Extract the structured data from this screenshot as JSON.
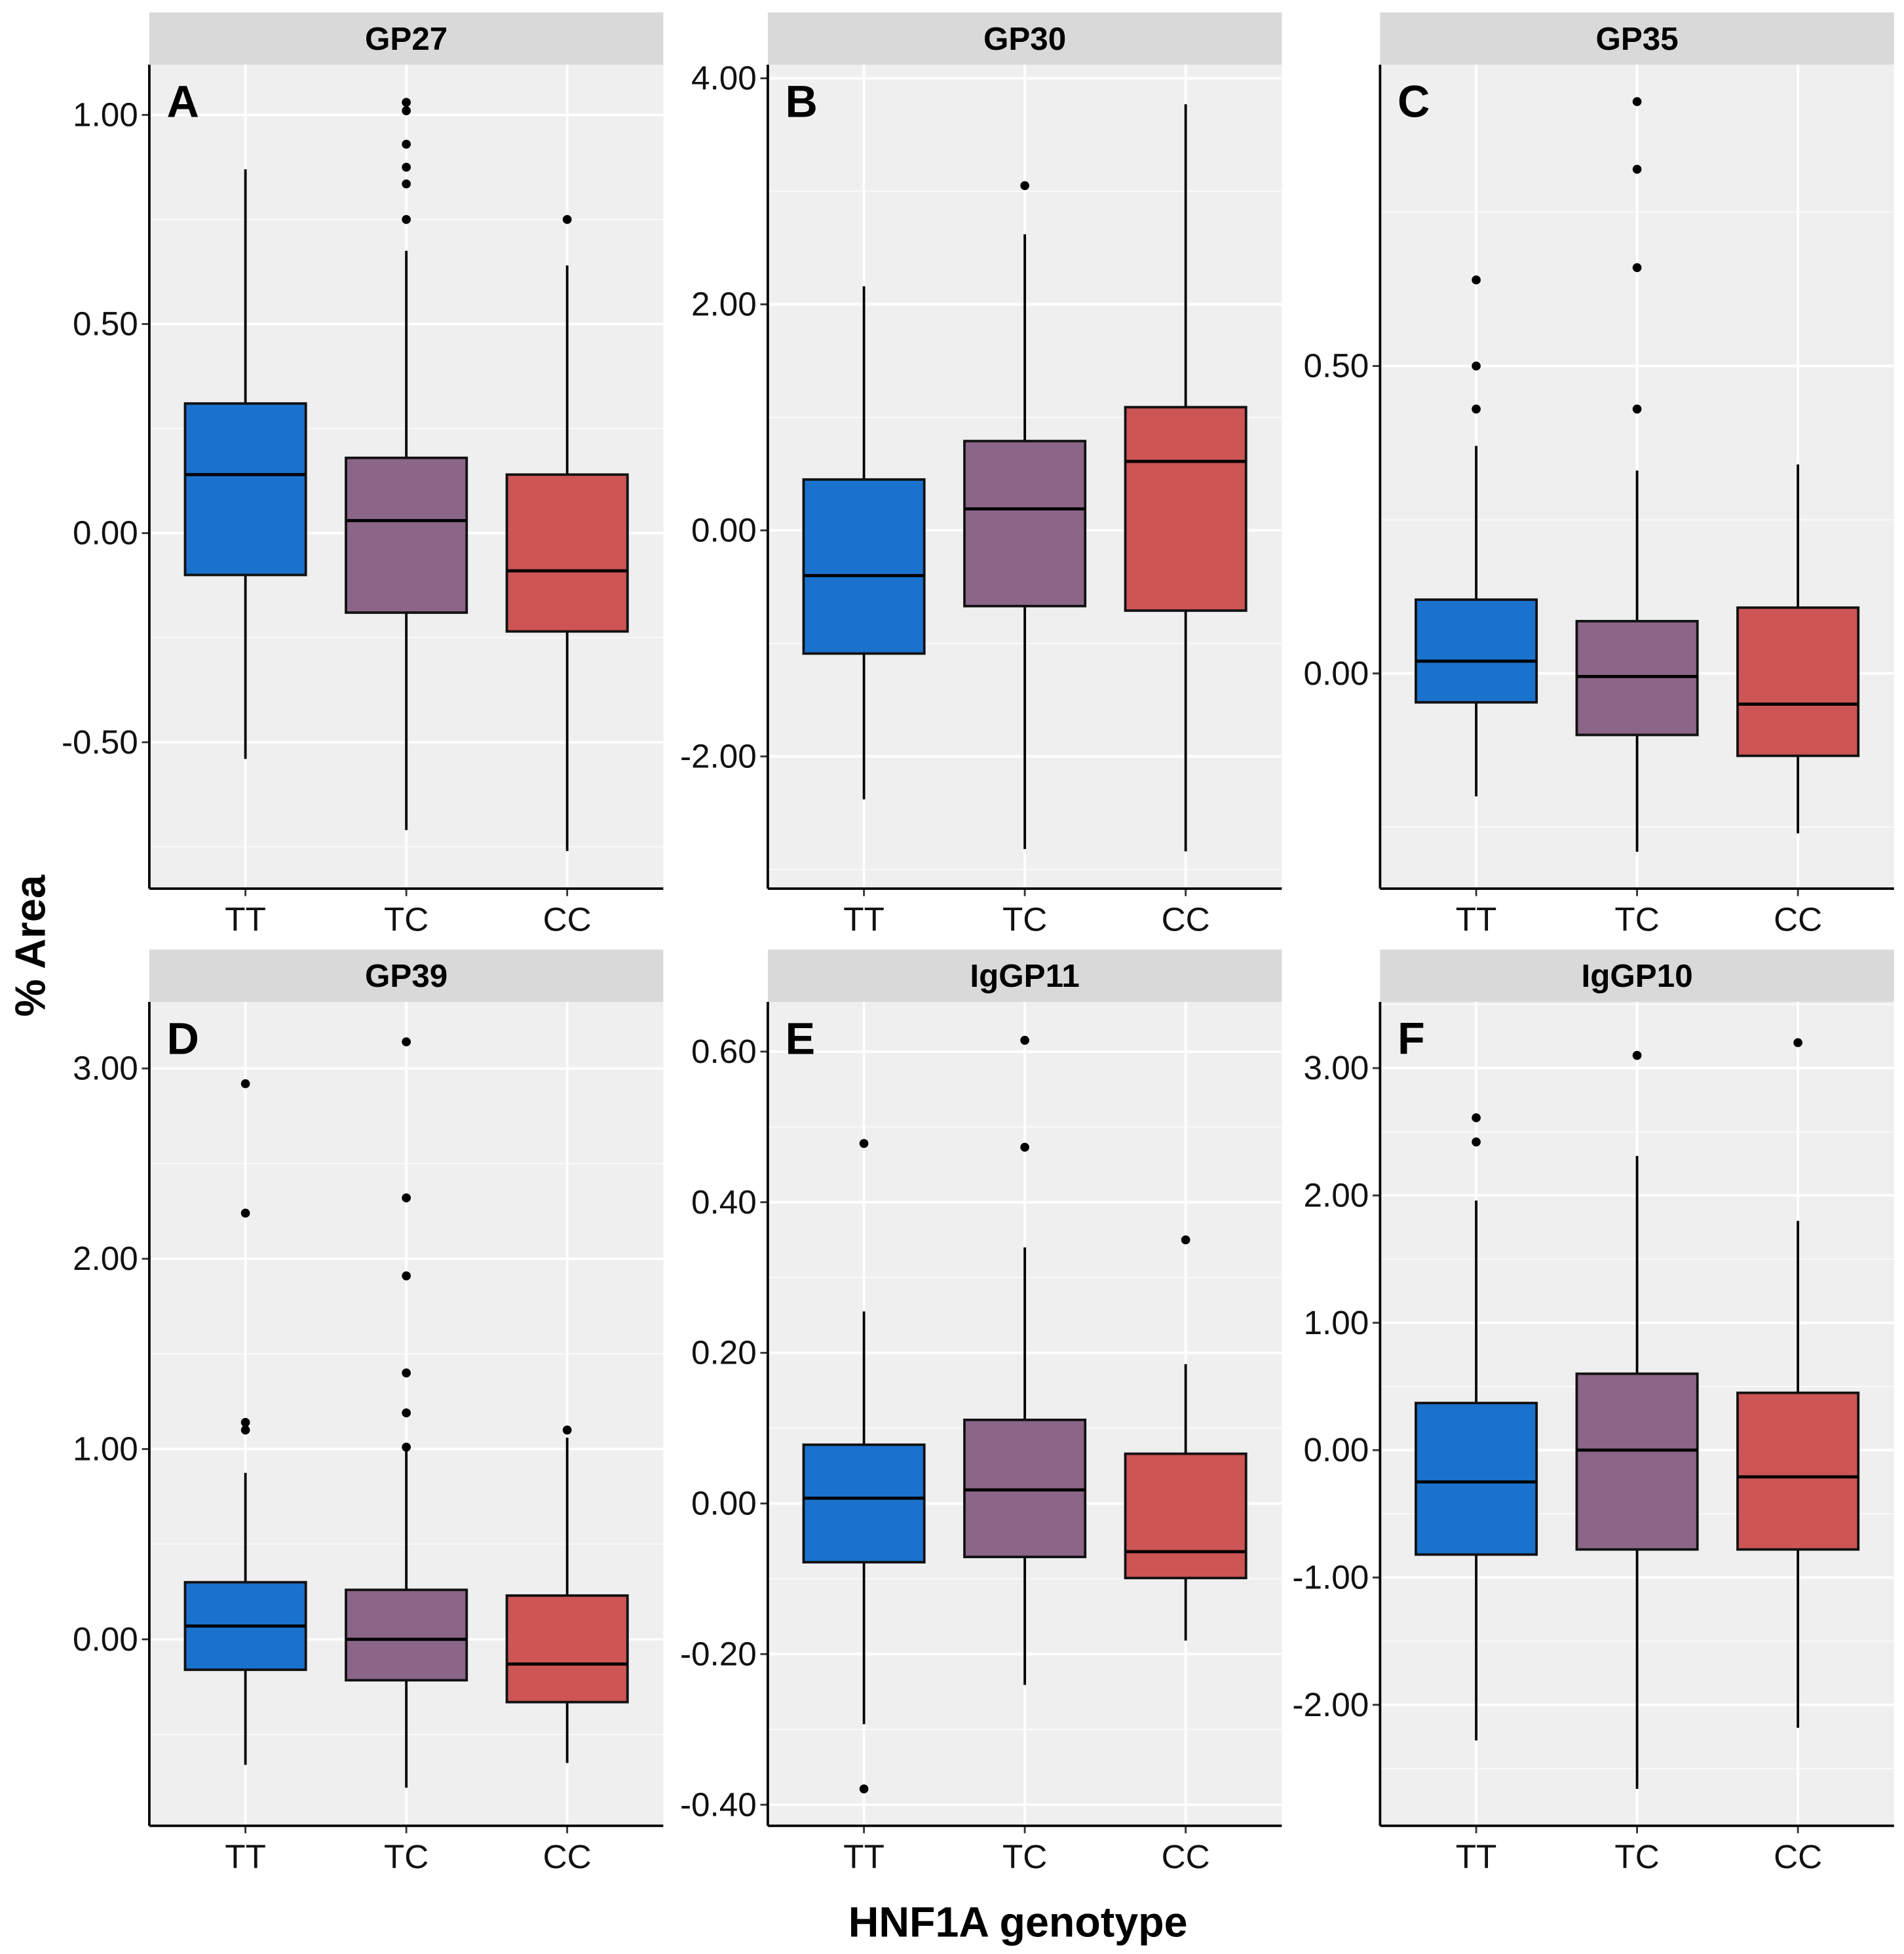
{
  "chart_data": {
    "type": "box",
    "xlabel": "HNF1A genotype",
    "ylabel": "% Area",
    "categories": [
      "TT",
      "TC",
      "CC"
    ],
    "colors": {
      "TT": "#1a72cc",
      "TC": "#8b6688",
      "CC": "#cd5555",
      "panel_bg": "#efefef",
      "strip_bg": "#d9d9d9"
    },
    "grid": true,
    "panels": [
      {
        "tag": "A",
        "title": "GP27",
        "ylim": [
          -0.85,
          1.12
        ],
        "yticks": [
          -0.5,
          0,
          0.5,
          1.0
        ],
        "ytick_labels": [
          "-0.50",
          "0.00",
          "0.50",
          "1.00"
        ],
        "boxes": [
          {
            "cat": "TT",
            "whisker_low": -0.54,
            "q1": -0.1,
            "median": 0.14,
            "q3": 0.31,
            "whisker_high": 0.87,
            "outliers": []
          },
          {
            "cat": "TC",
            "whisker_low": -0.71,
            "q1": -0.19,
            "median": 0.03,
            "q3": 0.18,
            "whisker_high": 0.675,
            "outliers": [
              1.03,
              1.01,
              0.93,
              0.875,
              0.835,
              0.75
            ]
          },
          {
            "cat": "CC",
            "whisker_low": -0.76,
            "q1": -0.235,
            "median": -0.09,
            "q3": 0.14,
            "whisker_high": 0.64,
            "outliers": [
              0.75
            ]
          }
        ]
      },
      {
        "tag": "B",
        "title": "GP30",
        "ylim": [
          -3.17,
          4.12
        ],
        "yticks": [
          -2,
          0,
          2,
          4
        ],
        "ytick_labels": [
          "-2.00",
          "0.00",
          "2.00",
          "4.00"
        ],
        "boxes": [
          {
            "cat": "TT",
            "whisker_low": -2.38,
            "q1": -1.09,
            "median": -0.4,
            "q3": 0.45,
            "whisker_high": 2.16,
            "outliers": []
          },
          {
            "cat": "TC",
            "whisker_low": -2.82,
            "q1": -0.67,
            "median": 0.19,
            "q3": 0.79,
            "whisker_high": 2.62,
            "outliers": [
              3.05
            ]
          },
          {
            "cat": "CC",
            "whisker_low": -2.84,
            "q1": -0.71,
            "median": 0.61,
            "q3": 1.09,
            "whisker_high": 3.77,
            "outliers": []
          }
        ]
      },
      {
        "tag": "C",
        "title": "GP35",
        "ylim": [
          -0.35,
          0.99
        ],
        "yticks": [
          0,
          0.5
        ],
        "ytick_labels": [
          "0.00",
          "0.50"
        ],
        "boxes": [
          {
            "cat": "TT",
            "whisker_low": -0.2,
            "q1": -0.047,
            "median": 0.02,
            "q3": 0.12,
            "whisker_high": 0.37,
            "outliers": [
              0.64,
              0.5,
              0.43
            ]
          },
          {
            "cat": "TC",
            "whisker_low": -0.29,
            "q1": -0.1,
            "median": -0.005,
            "q3": 0.085,
            "whisker_high": 0.33,
            "outliers": [
              0.93,
              0.82,
              0.66,
              0.43
            ]
          },
          {
            "cat": "CC",
            "whisker_low": -0.26,
            "q1": -0.134,
            "median": -0.05,
            "q3": 0.107,
            "whisker_high": 0.34,
            "outliers": []
          }
        ]
      },
      {
        "tag": "D",
        "title": "GP39",
        "ylim": [
          -0.98,
          3.35
        ],
        "yticks": [
          0,
          1,
          2,
          3
        ],
        "ytick_labels": [
          "0.00",
          "1.00",
          "2.00",
          "3.00"
        ],
        "boxes": [
          {
            "cat": "TT",
            "whisker_low": -0.66,
            "q1": -0.16,
            "median": 0.07,
            "q3": 0.3,
            "whisker_high": 0.875,
            "outliers": [
              2.92,
              2.24,
              1.14,
              1.1
            ]
          },
          {
            "cat": "TC",
            "whisker_low": -0.78,
            "q1": -0.215,
            "median": 0.0,
            "q3": 0.26,
            "whisker_high": 0.99,
            "outliers": [
              3.14,
              2.32,
              1.91,
              1.4,
              1.19,
              1.01
            ]
          },
          {
            "cat": "CC",
            "whisker_low": -0.65,
            "q1": -0.33,
            "median": -0.13,
            "q3": 0.23,
            "whisker_high": 1.06,
            "outliers": [
              1.1
            ]
          }
        ]
      },
      {
        "tag": "E",
        "title": "IgGP11",
        "ylim": [
          -0.428,
          0.666
        ],
        "yticks": [
          -0.4,
          -0.2,
          0,
          0.2,
          0.4,
          0.6
        ],
        "ytick_labels": [
          "-0.40",
          "-0.20",
          "0.00",
          "0.20",
          "0.40",
          "0.60"
        ],
        "boxes": [
          {
            "cat": "TT",
            "whisker_low": -0.293,
            "q1": -0.078,
            "median": 0.007,
            "q3": 0.078,
            "whisker_high": 0.255,
            "outliers": [
              0.478,
              -0.379
            ]
          },
          {
            "cat": "TC",
            "whisker_low": -0.241,
            "q1": -0.071,
            "median": 0.018,
            "q3": 0.111,
            "whisker_high": 0.34,
            "outliers": [
              0.615,
              0.473
            ]
          },
          {
            "cat": "CC",
            "whisker_low": -0.182,
            "q1": -0.099,
            "median": -0.064,
            "q3": 0.066,
            "whisker_high": 0.185,
            "outliers": [
              0.35
            ]
          }
        ]
      },
      {
        "tag": "F",
        "title": "IgGP10",
        "ylim": [
          -2.95,
          3.52
        ],
        "yticks": [
          -2,
          -1,
          0,
          1,
          2,
          3
        ],
        "ytick_labels": [
          "-2.00",
          "-1.00",
          "0.00",
          "1.00",
          "2.00",
          "3.00"
        ],
        "boxes": [
          {
            "cat": "TT",
            "whisker_low": -2.28,
            "q1": -0.82,
            "median": -0.25,
            "q3": 0.37,
            "whisker_high": 1.96,
            "outliers": [
              2.61,
              2.42
            ]
          },
          {
            "cat": "TC",
            "whisker_low": -2.66,
            "q1": -0.78,
            "median": 0.0,
            "q3": 0.6,
            "whisker_high": 2.31,
            "outliers": [
              3.1
            ]
          },
          {
            "cat": "CC",
            "whisker_low": -2.18,
            "q1": -0.78,
            "median": -0.21,
            "q3": 0.45,
            "whisker_high": 1.8,
            "outliers": [
              3.2
            ]
          }
        ]
      }
    ]
  }
}
